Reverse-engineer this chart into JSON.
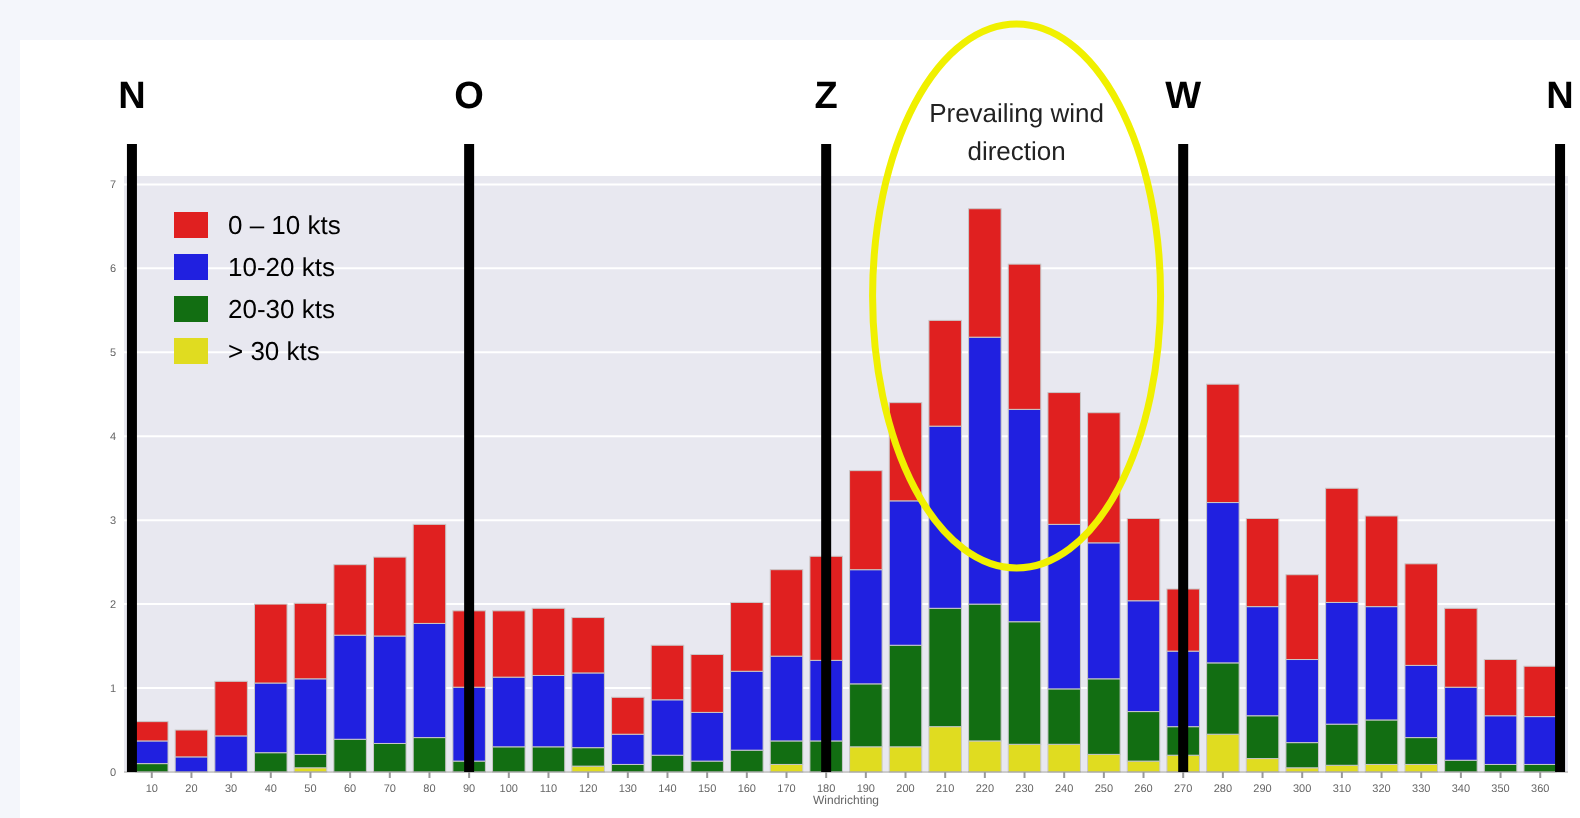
{
  "chart_data": {
    "type": "bar",
    "stacked": true,
    "xlabel": "Windrichting",
    "x": [
      10,
      20,
      30,
      40,
      50,
      60,
      70,
      80,
      90,
      100,
      110,
      120,
      130,
      140,
      150,
      160,
      170,
      180,
      190,
      200,
      210,
      220,
      230,
      240,
      250,
      260,
      270,
      280,
      290,
      300,
      310,
      320,
      330,
      340,
      350,
      360
    ],
    "xlim": [
      3,
      367
    ],
    "xticks": [
      10,
      20,
      30,
      40,
      50,
      60,
      70,
      80,
      90,
      100,
      110,
      120,
      130,
      140,
      150,
      160,
      170,
      180,
      190,
      200,
      210,
      220,
      230,
      240,
      250,
      260,
      270,
      280,
      290,
      300,
      310,
      320,
      330,
      340,
      350,
      360
    ],
    "ylim": [
      0,
      7.1
    ],
    "yticks": [
      0,
      1,
      2,
      3,
      4,
      5,
      6,
      7
    ],
    "grid": "y",
    "legend": "top left",
    "series": [
      {
        "name": "> 30 kts",
        "color": "#e0dc20",
        "values": [
          0,
          0,
          0,
          0,
          0.05,
          0,
          0,
          0,
          0,
          0,
          0,
          0.07,
          0,
          0,
          0,
          0,
          0.09,
          null,
          0.3,
          0.3,
          0.54,
          0.37,
          0.33,
          0.33,
          0.21,
          0.13,
          0.2,
          0.45,
          0.16,
          0.05,
          0.08,
          0.09,
          0.09,
          null,
          0,
          0
        ]
      },
      {
        "name": "20-30 kts",
        "color": "#126e12",
        "values": [
          0.1,
          null,
          null,
          0.23,
          0.16,
          0.39,
          0.34,
          0.41,
          0.13,
          0.3,
          0.3,
          0.22,
          0.09,
          0.2,
          0.13,
          0.26,
          0.28,
          0.37,
          0.75,
          1.21,
          1.41,
          1.63,
          1.46,
          0.66,
          0.9,
          0.59,
          0.34,
          0.85,
          0.51,
          0.3,
          0.49,
          0.53,
          0.32,
          0.14,
          0.09,
          0.09
        ]
      },
      {
        "name": "10-20 kts",
        "color": "#2020e0",
        "values": [
          0.27,
          0.18,
          0.43,
          0.83,
          0.9,
          1.24,
          1.28,
          1.36,
          0.88,
          0.83,
          0.85,
          0.89,
          0.36,
          0.66,
          0.58,
          0.94,
          1.01,
          0.96,
          1.36,
          1.72,
          2.17,
          3.18,
          2.53,
          1.96,
          1.62,
          1.32,
          0.9,
          1.91,
          1.3,
          0.99,
          1.45,
          1.35,
          0.86,
          0.87,
          0.58,
          0.57
        ]
      },
      {
        "name": "0 – 10 kts",
        "color": "#e02020",
        "values": [
          0.23,
          0.32,
          0.65,
          0.94,
          0.9,
          0.84,
          0.94,
          1.18,
          0.91,
          0.79,
          0.8,
          0.66,
          0.44,
          0.65,
          0.69,
          0.82,
          1.03,
          1.24,
          1.18,
          1.17,
          1.26,
          1.53,
          1.73,
          1.57,
          1.55,
          0.98,
          0.74,
          1.41,
          1.05,
          1.01,
          1.36,
          1.08,
          1.21,
          0.94,
          0.67,
          0.6
        ]
      }
    ],
    "ref_lines": [
      {
        "axis": "x",
        "value": 5,
        "label": "N",
        "color": "#000000"
      },
      {
        "axis": "x",
        "value": 90,
        "label": "O",
        "color": "#000000"
      },
      {
        "axis": "x",
        "value": 180,
        "label": "Z",
        "color": "#000000"
      },
      {
        "axis": "x",
        "value": 270,
        "label": "W",
        "color": "#000000"
      },
      {
        "axis": "x",
        "value": 365,
        "label": "N",
        "color": "#000000"
      }
    ],
    "annotations": [
      "Prevailing wind direction"
    ]
  }
}
